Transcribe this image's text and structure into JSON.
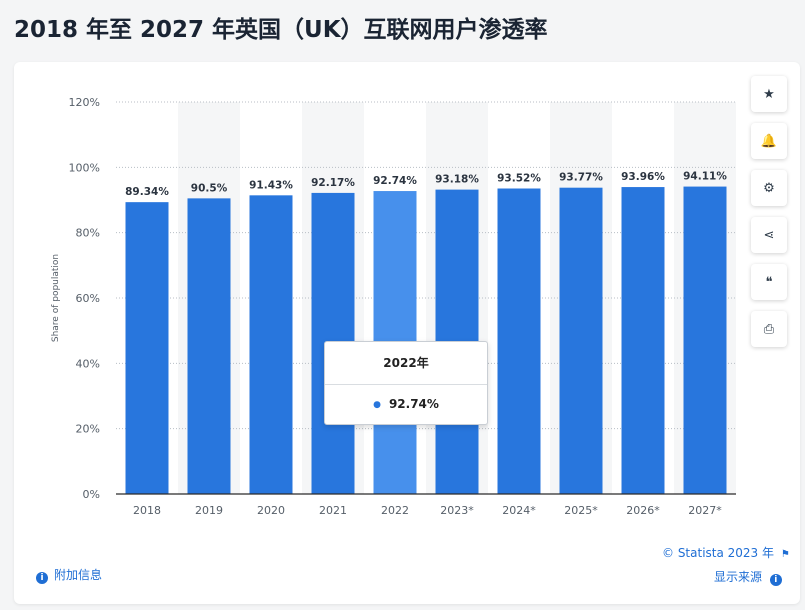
{
  "page": {
    "title": "2018 年至 2027 年英国（UK）互联网用户渗透率"
  },
  "toolbar": {
    "buttons": [
      {
        "name": "favorite-button",
        "icon": "star-icon",
        "glyph": "★"
      },
      {
        "name": "notify-button",
        "icon": "bell-icon",
        "glyph": "🔔"
      },
      {
        "name": "settings-button",
        "icon": "gear-icon",
        "glyph": "⚙"
      },
      {
        "name": "share-button",
        "icon": "share-icon",
        "glyph": "⋖"
      },
      {
        "name": "cite-button",
        "icon": "quote-icon",
        "glyph": "❝"
      },
      {
        "name": "print-button",
        "icon": "print-icon",
        "glyph": "⎙"
      }
    ]
  },
  "tooltip": {
    "title": "2022年",
    "value": "92.74%"
  },
  "footer": {
    "credit": "© Statista 2023 年",
    "show_source": "显示来源",
    "additional_info": "附加信息"
  },
  "colors": {
    "bar": "#2876dd",
    "bar_highlight": "#4790ec",
    "link": "#1f6ed4"
  },
  "chart_data": {
    "type": "bar",
    "categories": [
      "2018",
      "2019",
      "2020",
      "2021",
      "2022",
      "2023*",
      "2024*",
      "2025*",
      "2026*",
      "2027*"
    ],
    "values": [
      89.34,
      90.5,
      91.43,
      92.17,
      92.74,
      93.18,
      93.52,
      93.77,
      93.96,
      94.11
    ],
    "data_labels": [
      "89.34%",
      "90.5%",
      "91.43%",
      "92.17%",
      "92.74%",
      "93.18%",
      "93.52%",
      "93.77%",
      "93.96%",
      "94.11%"
    ],
    "highlighted_category": "2022",
    "ylabel": "Share of population",
    "xlabel": "",
    "ylim": [
      0,
      120
    ],
    "yticks": [
      0,
      20,
      40,
      60,
      80,
      100,
      120
    ],
    "ytick_labels": [
      "0%",
      "20%",
      "40%",
      "60%",
      "80%",
      "100%",
      "120%"
    ],
    "grid": true,
    "legend": false
  }
}
